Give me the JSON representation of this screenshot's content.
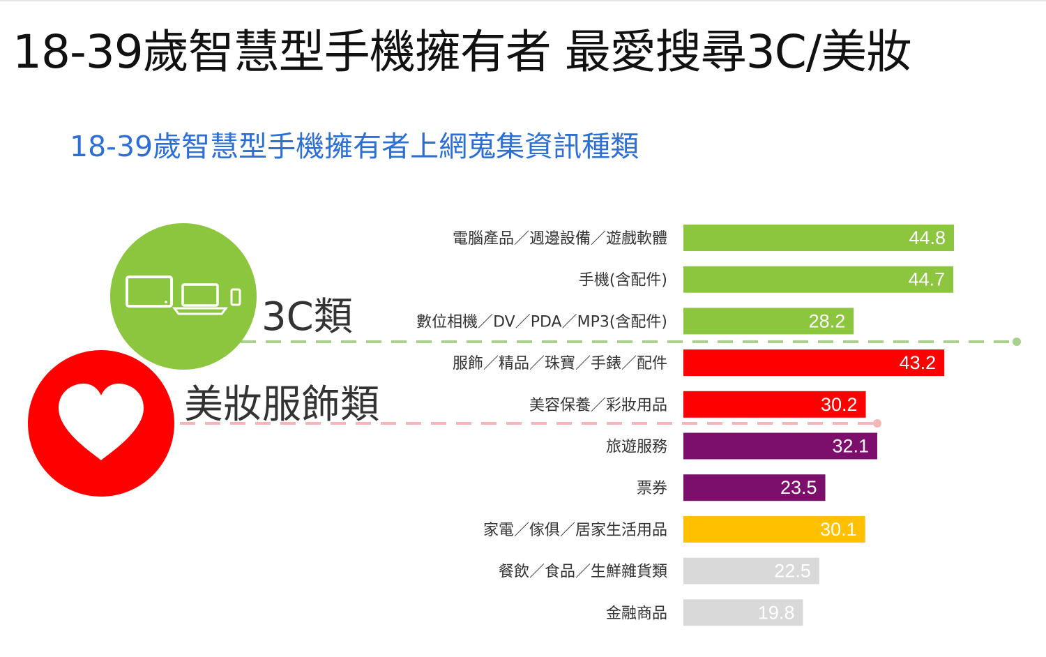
{
  "header": {
    "title": "18-39歲智慧型手機擁有者 最愛搜尋3C/美妝",
    "subtitle": "18-39歲智慧型手機擁有者上網蒐集資訊種類"
  },
  "groups": [
    {
      "label": "3C類",
      "color": "#8cc63f",
      "icon": "devices-icon"
    },
    {
      "label": "美妝服飾類",
      "color": "#ff0000",
      "icon": "heart-icon"
    }
  ],
  "chart_data": {
    "type": "bar",
    "orientation": "horizontal",
    "title": "18-39歲智慧型手機擁有者上網蒐集資訊種類",
    "categories": [
      "電腦產品／週邊設備／遊戲軟體",
      "手機(含配件)",
      "數位相機／DV／PDA／MP3(含配件)",
      "服飾／精品／珠寶／手錶／配件",
      "美容保養／彩妝用品",
      "旅遊服務",
      "票券",
      "家電／傢俱／居家生活用品",
      "餐飲／食品／生鮮雜貨類",
      "金融商品"
    ],
    "values": [
      44.8,
      44.7,
      28.2,
      43.2,
      30.2,
      32.1,
      23.5,
      30.1,
      22.5,
      19.8
    ],
    "value_labels": [
      "44.8",
      "44.7",
      "28.2",
      "43.2",
      "30.2",
      "32.1",
      "23.5",
      "30.1",
      "22.5",
      "19.8"
    ],
    "bar_colors": [
      "#8cc63f",
      "#8cc63f",
      "#8cc63f",
      "#ff0000",
      "#ff0000",
      "#7b0f6b",
      "#7b0f6b",
      "#ffc000",
      "#d9d9d9",
      "#d9d9d9"
    ],
    "xlim": [
      0,
      50
    ],
    "grid": false,
    "legend": "none"
  }
}
